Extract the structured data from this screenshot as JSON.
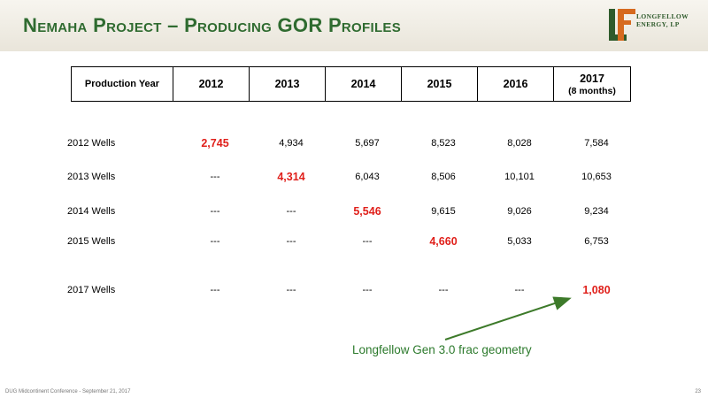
{
  "header": {
    "title": "Nemaha Project – Producing GOR Profiles",
    "logo": {
      "letters": "LF",
      "line1": "LONGFELLOW",
      "line2": "ENERGY, LP"
    }
  },
  "table": {
    "corner_label": "Production Year",
    "columns": [
      {
        "label": "2012",
        "sub": ""
      },
      {
        "label": "2013",
        "sub": ""
      },
      {
        "label": "2014",
        "sub": ""
      },
      {
        "label": "2015",
        "sub": ""
      },
      {
        "label": "2016",
        "sub": ""
      },
      {
        "label": "2017",
        "sub": "(8 months)"
      }
    ],
    "rows": [
      {
        "label": "2012 Wells",
        "cells": [
          "2,745",
          "4,934",
          "5,697",
          "8,523",
          "8,028",
          "7,584"
        ],
        "highlight": 0
      },
      {
        "label": "2013 Wells",
        "cells": [
          "---",
          "4,314",
          "6,043",
          "8,506",
          "10,101",
          "10,653"
        ],
        "highlight": 1
      },
      {
        "label": "2014 Wells",
        "cells": [
          "---",
          "---",
          "5,546",
          "9,615",
          "9,026",
          "9,234"
        ],
        "highlight": 2
      },
      {
        "label": "2015 Wells",
        "cells": [
          "---",
          "---",
          "---",
          "4,660",
          "5,033",
          "6,753"
        ],
        "highlight": 3
      },
      {
        "label": "2017 Wells",
        "cells": [
          "---",
          "---",
          "---",
          "---",
          "---",
          "1,080"
        ],
        "highlight": 5
      }
    ]
  },
  "annotation": "Longfellow Gen 3.0 frac geometry",
  "footer": {
    "left": "DUG Midcontinent Conference - September 21, 2017",
    "page": "23"
  },
  "colors": {
    "title_green": "#2f6b30",
    "highlight_red": "#e0201b",
    "annotation_green": "#2c7a2c",
    "logo_orange": "#d66a1f"
  }
}
